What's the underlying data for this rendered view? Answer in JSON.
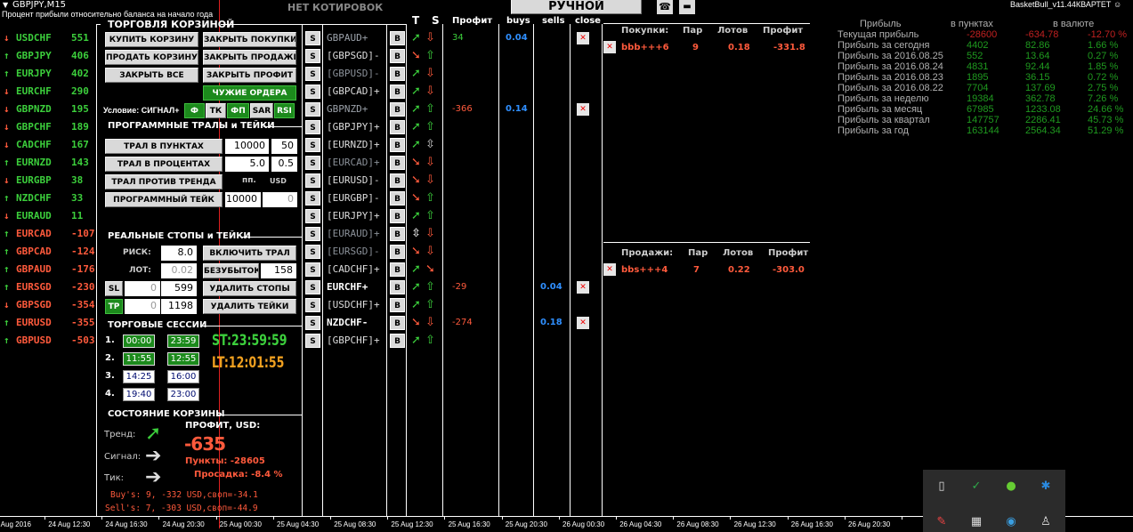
{
  "chart_title": "GBPJPY,M15",
  "subtitle": "Процент прибыли относительно баланса на начало года",
  "no_quotes": "НЕТ КОТИРОВОК",
  "mode_button": "РУЧНОЙ",
  "expert_name": "BasketBull_v11.44КВАРТЕТ",
  "colors": {
    "green": "#3ccf3c",
    "red": "#ff5a3c",
    "button": "#d9d9d9",
    "green_button": "#1c8a1c"
  },
  "strength_list": [
    {
      "pair": "USDCHF",
      "value": "551",
      "dir": "down",
      "color": "green"
    },
    {
      "pair": "GBPJPY",
      "value": "406",
      "dir": "up",
      "color": "green"
    },
    {
      "pair": "EURJPY",
      "value": "402",
      "dir": "up",
      "color": "green"
    },
    {
      "pair": "EURCHF",
      "value": "290",
      "dir": "down",
      "color": "green"
    },
    {
      "pair": "GBPNZD",
      "value": "195",
      "dir": "down",
      "color": "green"
    },
    {
      "pair": "GBPCHF",
      "value": "189",
      "dir": "down",
      "color": "green"
    },
    {
      "pair": "CADCHF",
      "value": "167",
      "dir": "down",
      "color": "green"
    },
    {
      "pair": "EURNZD",
      "value": "143",
      "dir": "up",
      "color": "green"
    },
    {
      "pair": "EURGBP",
      "value": "38",
      "dir": "down",
      "color": "green"
    },
    {
      "pair": "NZDCHF",
      "value": "33",
      "dir": "up",
      "color": "green"
    },
    {
      "pair": "EURAUD",
      "value": "11",
      "dir": "down",
      "color": "green"
    },
    {
      "pair": "EURCAD",
      "value": "-107",
      "dir": "up",
      "color": "red"
    },
    {
      "pair": "GBPCAD",
      "value": "-124",
      "dir": "up",
      "color": "red"
    },
    {
      "pair": "GBPAUD",
      "value": "-176",
      "dir": "up",
      "color": "red"
    },
    {
      "pair": "EURSGD",
      "value": "-230",
      "dir": "up",
      "color": "red"
    },
    {
      "pair": "GBPSGD",
      "value": "-354",
      "dir": "down",
      "color": "red"
    },
    {
      "pair": "EURUSD",
      "value": "-355",
      "dir": "up",
      "color": "red"
    },
    {
      "pair": "GBPUSD",
      "value": "-503",
      "dir": "up",
      "color": "red"
    }
  ],
  "basket": {
    "title": "ТОРГОВЛЯ КОРЗИНОЙ",
    "buy_basket": "КУПИТЬ КОРЗИНУ",
    "close_buys": "ЗАКРЫТЬ ПОКУПКИ",
    "sell_basket": "ПРОДАТЬ КОРЗИНУ",
    "close_sells": "ЗАКРЫТЬ ПРОДАЖИ",
    "close_all": "ЗАКРЫТЬ ВСЕ",
    "close_profit": "ЗАКРЫТЬ ПРОФИТ",
    "foreign_orders": "ЧУЖИЕ ОРДЕРА",
    "condition_label": "Условие: СИГНАЛ+",
    "conditions": [
      {
        "label": "Ф",
        "active": true
      },
      {
        "label": "ТК",
        "active": false
      },
      {
        "label": "ФП",
        "active": true
      },
      {
        "label": "SAR",
        "active": false
      },
      {
        "label": "RSI",
        "active": true
      }
    ]
  },
  "trails": {
    "title": "ПРОГРАММНЫЕ ТРАЛЫ и ТЕЙКИ",
    "points_trail": "ТРАЛ В ПУНКТАХ",
    "points_v1": "10000",
    "points_v2": "50",
    "percent_trail": "ТРАЛ В ПРОЦЕНТАХ",
    "percent_v1": "5.0",
    "percent_v2": "0.5",
    "counter_trail": "ТРАЛ ПРОТИВ ТРЕНДА",
    "unit_pp": "пп.",
    "unit_usd": "USD",
    "prog_take": "ПРОГРАММНЫЙ ТЕЙК",
    "take_v1": "10000",
    "take_v2": "0"
  },
  "stops": {
    "title": "РЕАЛЬНЫЕ СТОПЫ и ТЕЙКИ",
    "risk_label": "РИСК:",
    "risk_value": "8.0",
    "enable_trail": "ВКЛЮЧИТЬ ТРАЛ",
    "lot_label": "ЛОТ:",
    "lot_value": "0.02",
    "breakeven": "БЕЗУБЫТОК",
    "breakeven_value": "158",
    "sl": "SL",
    "sl_v1": "0",
    "sl_v2": "599",
    "delete_stops": "УДАЛИТЬ СТОПЫ",
    "tp": "TP",
    "tp_v1": "0",
    "tp_v2": "1198",
    "delete_takes": "УДАЛИТЬ ТЕЙКИ"
  },
  "sessions": {
    "title": "ТОРГОВЫЕ СЕССИИ",
    "items": [
      {
        "n": "1.",
        "start": "00:00",
        "end": "23:59",
        "active": true
      },
      {
        "n": "2.",
        "start": "11:55",
        "end": "12:55",
        "active": true
      },
      {
        "n": "3.",
        "start": "14:25",
        "end": "16:00",
        "active": false
      },
      {
        "n": "4.",
        "start": "19:40",
        "end": "23:00",
        "active": false
      }
    ],
    "server_time": "ST:23:59:59",
    "local_time": "LT:12:01:55"
  },
  "state": {
    "title": "СОСТОЯНИЕ КОРЗИНЫ",
    "trend": "Тренд:",
    "signal": "Сигнал:",
    "tick": "Тик:",
    "profit_label": "ПРОФИТ, USD:",
    "profit": "-635",
    "points": "Пункты: -28605",
    "drawdown": "Просадка: -8.4 %",
    "buys": "Buy's: 9, -332 USD,своп=-34.1",
    "sells": "Sell's: 7, -303 USD,своп=-44.9"
  },
  "pairs_table": {
    "headers": {
      "t": "T",
      "s": "S",
      "profit": "Профит",
      "buys": "buys",
      "sells": "sells",
      "close": "close"
    },
    "s_label": "S",
    "b_label": "B",
    "rows": [
      {
        "pair": "GBPAUD+",
        "style": "dim",
        "t": "up",
        "s": "down",
        "profit": "34",
        "pcolor": "green",
        "buys": "0.04",
        "sells": "",
        "close": true
      },
      {
        "pair": "[GBPSGD]-",
        "style": "br",
        "t": "down",
        "s": "up",
        "profit": "",
        "buys": "",
        "sells": "",
        "close": false
      },
      {
        "pair": "[GBPUSD]-",
        "style": "dimbr",
        "t": "up",
        "s": "down",
        "profit": "",
        "buys": "",
        "sells": "",
        "close": false
      },
      {
        "pair": "[GBPCAD]+",
        "style": "br",
        "t": "up",
        "s": "down",
        "profit": "",
        "buys": "",
        "sells": "",
        "close": false
      },
      {
        "pair": "GBPNZD+",
        "style": "dim",
        "t": "up",
        "s": "up",
        "profit": "-366",
        "pcolor": "red",
        "buys": "0.14",
        "sells": "",
        "close": true
      },
      {
        "pair": "[GBPJPY]+",
        "style": "br",
        "t": "up",
        "s": "up",
        "profit": "",
        "buys": "",
        "sells": "",
        "close": false
      },
      {
        "pair": "[EURNZD]+",
        "style": "br",
        "t": "up",
        "s": "updown",
        "profit": "",
        "buys": "",
        "sells": "",
        "close": false
      },
      {
        "pair": "[EURCAD]+",
        "style": "dimbr",
        "t": "down",
        "s": "down",
        "profit": "",
        "buys": "",
        "sells": "",
        "close": false
      },
      {
        "pair": "[EURUSD]-",
        "style": "br",
        "t": "down",
        "s": "down",
        "profit": "",
        "buys": "",
        "sells": "",
        "close": false
      },
      {
        "pair": "[EURGBP]-",
        "style": "br",
        "t": "down",
        "s": "up",
        "profit": "",
        "buys": "",
        "sells": "",
        "close": false
      },
      {
        "pair": "[EURJPY]+",
        "style": "br",
        "t": "up",
        "s": "up",
        "profit": "",
        "buys": "",
        "sells": "",
        "close": false
      },
      {
        "pair": "[EURAUD]+",
        "style": "dimbr",
        "t": "updown",
        "s": "down",
        "profit": "",
        "buys": "",
        "sells": "",
        "close": false
      },
      {
        "pair": "[EURSGD]-",
        "style": "dimbr",
        "t": "down",
        "s": "down",
        "profit": "",
        "buys": "",
        "sells": "",
        "close": false
      },
      {
        "pair": "[CADCHF]+",
        "style": "br",
        "t": "up",
        "s": "downright",
        "profit": "",
        "buys": "",
        "sells": "",
        "close": false
      },
      {
        "pair": "EURCHF+",
        "style": "white",
        "t": "up",
        "s": "up",
        "profit": "-29",
        "pcolor": "red",
        "buys": "",
        "sells": "0.04",
        "close": true
      },
      {
        "pair": "[USDCHF]+",
        "style": "br",
        "t": "up",
        "s": "up",
        "profit": "",
        "buys": "",
        "sells": "",
        "close": false
      },
      {
        "pair": "NZDCHF-",
        "style": "white",
        "t": "down",
        "s": "down",
        "profit": "-274",
        "pcolor": "red",
        "buys": "",
        "sells": "0.18",
        "close": true
      },
      {
        "pair": "[GBPCHF]+",
        "style": "br",
        "t": "up",
        "s": "up",
        "profit": "",
        "buys": "",
        "sells": "",
        "close": false
      }
    ]
  },
  "buys_panel": {
    "title": "Покупки:",
    "col_pairs": "Пар",
    "col_lots": "Лотов",
    "col_profit": "Профит",
    "row": {
      "name": "bbb+++6",
      "pairs": "9",
      "lots": "0.18",
      "profit": "-331.8"
    }
  },
  "sells_panel": {
    "title": "Продажи:",
    "col_pairs": "Пар",
    "col_lots": "Лотов",
    "col_profit": "Профит",
    "row": {
      "name": "bbs+++4",
      "pairs": "7",
      "lots": "0.22",
      "profit": "-303.0"
    }
  },
  "profit_stats": {
    "headers": [
      "Прибыль",
      "в пунктах",
      "в валюте"
    ],
    "rows": [
      {
        "label": "Текущая прибыль",
        "points": "-28600",
        "money": "-634.78",
        "pct": "-12.70 %",
        "neg": true
      },
      {
        "label": "Прибыль за сегодня",
        "points": "4402",
        "money": "82.86",
        "pct": "1.66 %"
      },
      {
        "label": "Прибыль за 2016.08.25",
        "points": "552",
        "money": "13.64",
        "pct": "0.27 %"
      },
      {
        "label": "Прибыль за 2016.08.24",
        "points": "4831",
        "money": "92.44",
        "pct": "1.85 %"
      },
      {
        "label": "Прибыль за 2016.08.23",
        "points": "1895",
        "money": "36.15",
        "pct": "0.72 %"
      },
      {
        "label": "Прибыль за 2016.08.22",
        "points": "7704",
        "money": "137.69",
        "pct": "2.75 %"
      },
      {
        "label": "Прибыль за неделю",
        "points": "19384",
        "money": "362.78",
        "pct": "7.26 %"
      },
      {
        "label": "Прибыль за месяц",
        "points": "67985",
        "money": "1233.08",
        "pct": "24.66 %"
      },
      {
        "label": "Прибыль за квартал",
        "points": "147757",
        "money": "2286.41",
        "pct": "45.73 %"
      },
      {
        "label": "Прибыль за год",
        "points": "163144",
        "money": "2564.34",
        "pct": "51.29 %"
      }
    ]
  },
  "time_axis": [
    "24 Aug 2016",
    "24 Aug 12:30",
    "24 Aug 16:30",
    "24 Aug 20:30",
    "25 Aug 00:30",
    "25 Aug 04:30",
    "25 Aug 08:30",
    "25 Aug 12:30",
    "25 Aug 16:30",
    "25 Aug 20:30",
    "26 Aug 00:30",
    "26 Aug 04:30",
    "26 Aug 08:30",
    "26 Aug 12:30",
    "26 Aug 16:30",
    "26 Aug 20:30"
  ],
  "tray_icons": [
    "usb-drive-icon",
    "checkmark-app-icon",
    "utorrent-icon",
    "bluetooth-icon",
    "app-icon",
    "network-device-icon",
    "security-icon",
    "usb-safe-remove-icon"
  ]
}
